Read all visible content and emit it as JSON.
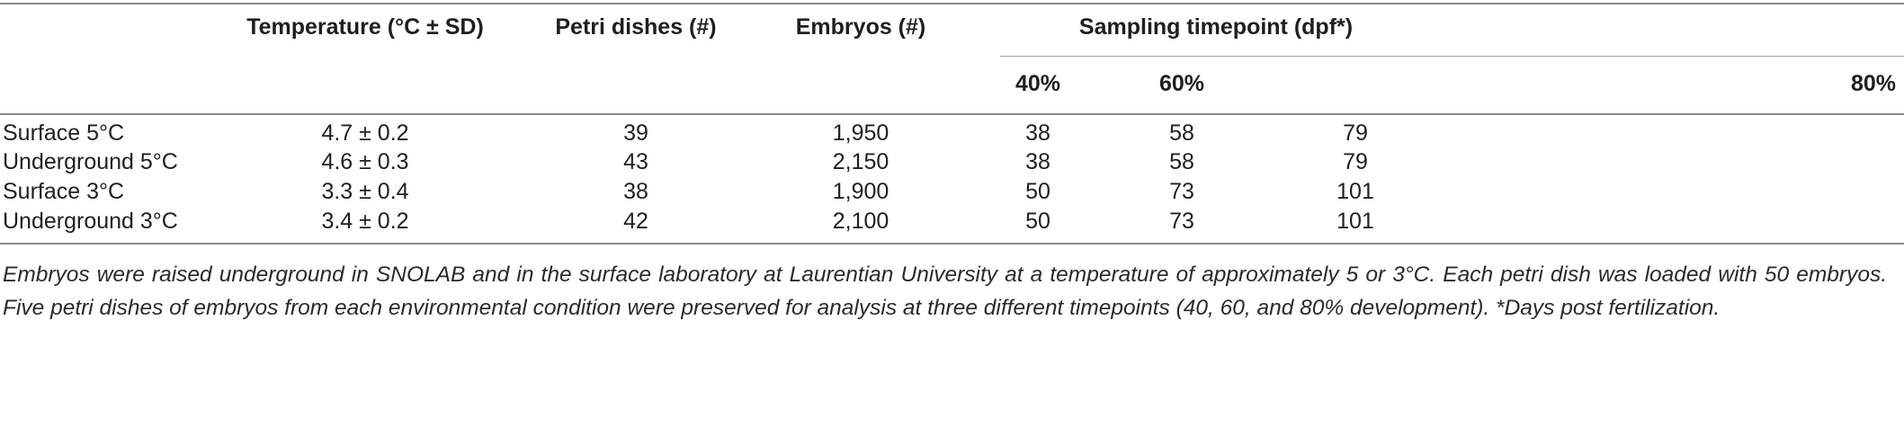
{
  "table": {
    "headers": {
      "temperature": "Temperature (°C ± SD)",
      "petri": "Petri dishes (#)",
      "embryos": "Embryos (#)",
      "sampling": "Sampling timepoint (dpf*)",
      "sub": [
        "40%",
        "60%",
        "80%"
      ]
    },
    "rows": [
      {
        "label": "Surface 5°C",
        "temp": "4.7 ± 0.2",
        "petri": "39",
        "embryos": "1,950",
        "t40": "38",
        "t60": "58",
        "t80": "79"
      },
      {
        "label": "Underground 5°C",
        "temp": "4.6 ± 0.3",
        "petri": "43",
        "embryos": "2,150",
        "t40": "38",
        "t60": "58",
        "t80": "79"
      },
      {
        "label": "Surface 3°C",
        "temp": "3.3 ± 0.4",
        "petri": "38",
        "embryos": "1,900",
        "t40": "50",
        "t60": "73",
        "t80": "101"
      },
      {
        "label": "Underground 3°C",
        "temp": "3.4 ± 0.2",
        "petri": "42",
        "embryos": "2,100",
        "t40": "50",
        "t60": "73",
        "t80": "101"
      }
    ],
    "footnote": "Embryos were raised underground in SNOLAB and in the surface laboratory at Laurentian University at a temperature of approximately 5 or 3°C. Each petri dish was loaded with 50 embryos. Five petri dishes of embryos from each environmental condition were preserved for analysis at three different timepoints (40, 60, and 80% development). *Days post fertilization."
  }
}
